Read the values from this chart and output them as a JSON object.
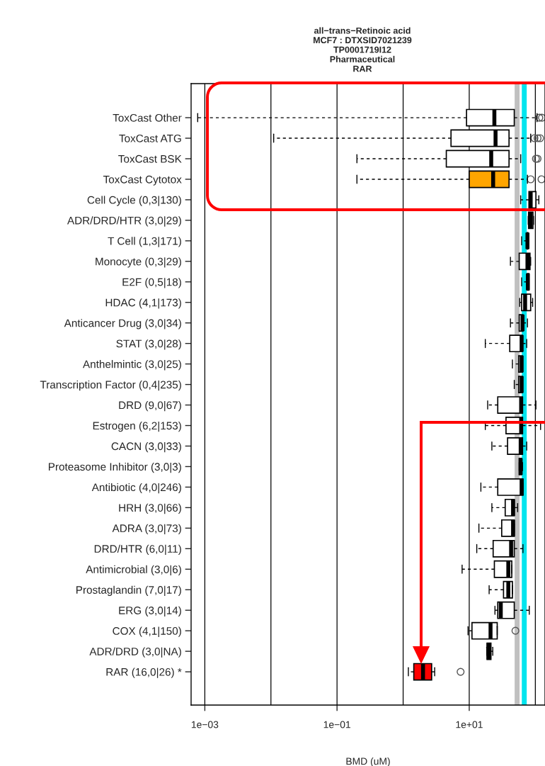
{
  "chart_data": {
    "type": "box",
    "title": "all−trans−Retinoic acid\nMCF7 : DTXSID7021239\nTP0001719I12\nPharmaceutical\nRAR",
    "xlabel": "BMD (uM)",
    "orientation": "horizontal",
    "log": "x",
    "grid": "x",
    "xlim": [
      0.00062,
      140
    ],
    "xticks": [
      {
        "value": 0.001,
        "label": "1e−03"
      },
      {
        "value": 0.01,
        "label": null
      },
      {
        "value": 0.1,
        "label": "1e−01"
      },
      {
        "value": 1,
        "label": null
      },
      {
        "value": 10,
        "label": "1e+01"
      },
      {
        "value": 100,
        "label": null
      }
    ],
    "categories": [
      "ToxCast Other",
      "ToxCast ATG",
      "ToxCast BSK",
      "ToxCast Cytotox",
      "Cell Cycle (0,3|130)",
      "ADR/DRD/HTR (3,0|29)",
      "T Cell (1,3|171)",
      "Monocyte (0,3|29)",
      "E2F (0,5|18)",
      "HDAC (4,1|173)",
      "Anticancer Drug (3,0|34)",
      "STAT (3,0|28)",
      "Anthelmintic (3,0|25)",
      "Transcription Factor (0,4|235)",
      "DRD (9,0|67)",
      "Estrogen (6,2|153)",
      "CACN (3,0|33)",
      "Proteasome Inhibitor (3,0|3)",
      "Antibiotic (4,0|246)",
      "HRH (3,0|66)",
      "ADRA (3,0|73)",
      "DRD/HTR (6,0|11)",
      "Antimicrobial (3,0|6)",
      "Prostaglandin (7,0|17)",
      "ERG (3,0|14)",
      "COX (4,1|150)",
      "ADR/DRD (3,0|NA)",
      "RAR (16,0|26) *"
    ],
    "colors": [
      "#ffffff",
      "#ffffff",
      "#ffffff",
      "#ffa500",
      "#ffffff",
      "#ffffff",
      "#ffffff",
      "#ffffff",
      "#ffffff",
      "#ffffff",
      "#ffffff",
      "#ffffff",
      "#ffffff",
      "#ffffff",
      "#ffffff",
      "#ffffff",
      "#ffffff",
      "#ffffff",
      "#ffffff",
      "#ffffff",
      "#ffffff",
      "#ffffff",
      "#ffffff",
      "#ffffff",
      "#ffffff",
      "#ffffff",
      "#ffffff",
      "#ff0000"
    ],
    "boxes": [
      {
        "low": 0.00078,
        "q1": 9.1,
        "median": 24,
        "q3": 48,
        "high": 106,
        "outliers": [
          115,
          126
        ]
      },
      {
        "low": 0.011,
        "q1": 5.3,
        "median": 25,
        "q3": 40,
        "high": 85,
        "outliers": [
          97,
          108,
          118
        ]
      },
      {
        "low": 0.2,
        "q1": 4.5,
        "median": 21.5,
        "q3": 40,
        "high": 60,
        "outliers": [
          102,
          108
        ]
      },
      {
        "low": 0.2,
        "q1": 10,
        "median": 23,
        "q3": 40,
        "high": 76,
        "outliers": [
          85,
          124
        ]
      },
      {
        "low": 60,
        "q1": 80,
        "median": 85,
        "q3": 102,
        "high": 113
      },
      {
        "low": 78,
        "q1": 79,
        "median": 84,
        "q3": 92,
        "high": 94
      },
      {
        "low": 62,
        "q1": 75,
        "median": 76,
        "q3": 77,
        "high": 77
      },
      {
        "low": 42,
        "q1": 57,
        "median": 76,
        "q3": 83,
        "high": 85
      },
      {
        "low": 62,
        "q1": 75,
        "median": 77,
        "q3": 80,
        "high": 80
      },
      {
        "low": 58,
        "q1": 62,
        "median": 70,
        "q3": 85,
        "high": 91
      },
      {
        "low": 42,
        "q1": 57,
        "median": 64,
        "q3": 65,
        "high": 76
      },
      {
        "low": 17.5,
        "q1": 41,
        "median": 62,
        "q3": 64,
        "high": 74
      },
      {
        "low": 45,
        "q1": 56,
        "median": 62,
        "q3": 64,
        "high": 64
      },
      {
        "low": 48,
        "q1": 56,
        "median": 62,
        "q3": 64,
        "high": 64
      },
      {
        "low": 19,
        "q1": 27,
        "median": 61,
        "q3": 64,
        "high": 102
      },
      {
        "low": 17.5,
        "q1": 36,
        "median": 61,
        "q3": 64,
        "high": 120
      },
      {
        "low": 22,
        "q1": 38,
        "median": 60,
        "q3": 64,
        "high": 74
      },
      {
        "low": 57,
        "q1": 57,
        "median": 60,
        "q3": 62,
        "high": 64
      },
      {
        "low": 15,
        "q1": 27,
        "median": 62,
        "q3": 65,
        "high": 65
      },
      {
        "low": 22,
        "q1": 35,
        "median": 46,
        "q3": 48,
        "high": 54
      },
      {
        "low": 14,
        "q1": 31,
        "median": 46,
        "q3": 48,
        "high": 48
      },
      {
        "low": 13,
        "q1": 23,
        "median": 43,
        "q3": 48,
        "high": 65
      },
      {
        "low": 7.8,
        "q1": 24,
        "median": 39,
        "q3": 44,
        "high": 44
      },
      {
        "low": 20,
        "q1": 33,
        "median": 39,
        "q3": 45,
        "high": 45
      },
      {
        "low": 24.5,
        "q1": 27,
        "median": 30,
        "q3": 48,
        "high": 81
      },
      {
        "low": 9.6,
        "q1": 11,
        "median": 21,
        "q3": 26.5,
        "high": 26.5,
        "outliers": [
          50
        ]
      },
      {
        "low": 18.4,
        "q1": 18.6,
        "median": 19.6,
        "q3": 21.3,
        "high": 22.7
      },
      {
        "low": 1.2,
        "q1": 1.45,
        "median": 2,
        "q3": 2.7,
        "high": 3,
        "outliers": [
          7.4
        ]
      }
    ],
    "ref_lines": [
      {
        "axis": "x",
        "value": 53,
        "color": "#c0c0c0"
      },
      {
        "axis": "x",
        "value": 68,
        "color": "#00e5ee"
      }
    ]
  }
}
